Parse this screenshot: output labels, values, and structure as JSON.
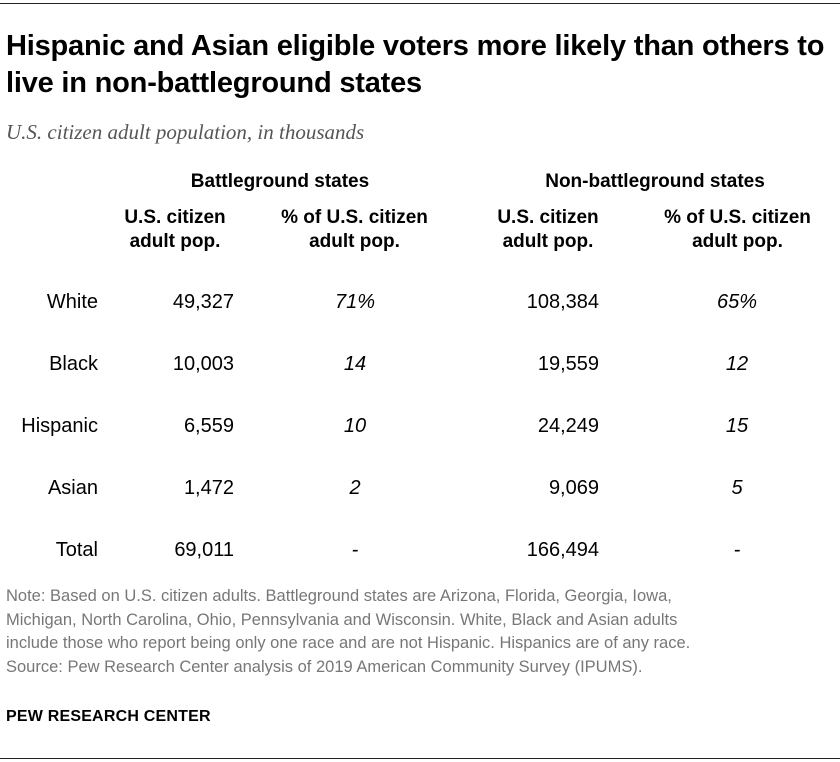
{
  "title": "Hispanic and Asian eligible voters more likely than others to live in non-battleground states",
  "chart_data": {
    "type": "table",
    "title": "Hispanic and Asian eligible voters more likely than others to live in non-battleground states",
    "subtitle": "U.S. citizen adult population, in thousands",
    "groups": [
      "Battleground states",
      "Non-battleground states"
    ],
    "columns": [
      "U.S. citizen adult pop.",
      "% of U.S. citizen adult pop.",
      "U.S. citizen adult pop.",
      "% of U.S. citizen adult pop."
    ],
    "rows": [
      {
        "label": "White",
        "bg_pop": "49,327",
        "bg_pct": "71%",
        "nbg_pop": "108,384",
        "nbg_pct": "65%"
      },
      {
        "label": "Black",
        "bg_pop": "10,003",
        "bg_pct": "14",
        "nbg_pop": "19,559",
        "nbg_pct": "12"
      },
      {
        "label": "Hispanic",
        "bg_pop": "6,559",
        "bg_pct": "10",
        "nbg_pop": "24,249",
        "nbg_pct": "15"
      },
      {
        "label": "Asian",
        "bg_pop": "1,472",
        "bg_pct": "2",
        "nbg_pop": "9,069",
        "nbg_pct": "5"
      },
      {
        "label": "Total",
        "bg_pop": "69,011",
        "bg_pct": "-",
        "nbg_pop": "166,494",
        "nbg_pct": "-"
      }
    ]
  },
  "note_lines": [
    "Note: Based on U.S. citizen adults. Battleground states are Arizona, Florida, Georgia, Iowa,",
    "Michigan, North Carolina, Ohio, Pennsylvania and Wisconsin. White, Black and Asian adults",
    "include those who report being only one race and are not Hispanic. Hispanics are of any race.",
    "Source: Pew Research Center analysis of 2019 American Community Survey (IPUMS)."
  ],
  "brand": "PEW RESEARCH CENTER"
}
